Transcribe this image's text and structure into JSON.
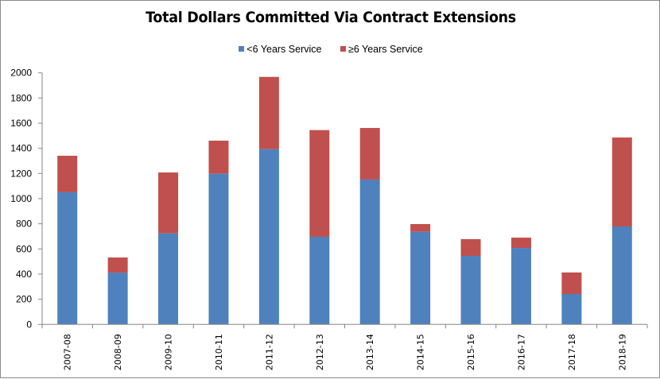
{
  "chart_data": {
    "type": "bar",
    "stacked": true,
    "title": "Total Dollars Committed Via Contract Extensions",
    "xlabel": "",
    "ylabel": "",
    "ylim": [
      0,
      2000
    ],
    "yticks": [
      0,
      200,
      400,
      600,
      800,
      1000,
      1200,
      1400,
      1600,
      1800,
      2000
    ],
    "grid": false,
    "legend_position": "top-center",
    "categories": [
      "2007-08",
      "2008-09",
      "2009-10",
      "2010-11",
      "2011-12",
      "2012-13",
      "2013-14",
      "2014-15",
      "2015-16",
      "2016-17",
      "2017-18",
      "2018-19"
    ],
    "series": [
      {
        "name": "<6 Years Service",
        "color": "#4f81bd",
        "values": [
          1051,
          412,
          724,
          1198,
          1394,
          697,
          1152,
          737,
          545,
          608,
          242,
          779
        ]
      },
      {
        "name": "≥6 Years Service",
        "color": "#c0504d",
        "values": [
          290,
          120,
          484,
          263,
          574,
          848,
          410,
          61,
          133,
          82,
          171,
          707
        ]
      }
    ]
  }
}
